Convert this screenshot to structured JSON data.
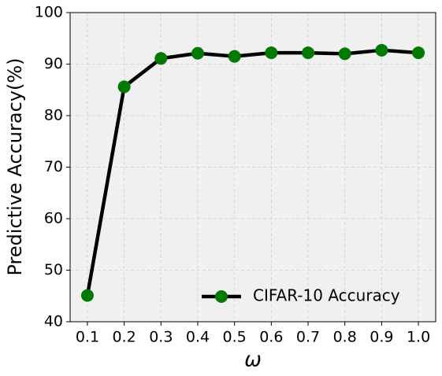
{
  "chart_data": {
    "type": "line",
    "x_label": "ω",
    "y_label": "Predictive Accuracy(%)",
    "x": [
      0.1,
      0.2,
      0.3,
      0.4,
      0.5,
      0.6,
      0.7,
      0.8,
      0.9,
      1.0
    ],
    "series": [
      {
        "name": "CIFAR-10 Accuracy",
        "color": "#000000",
        "marker_color": "#007a00",
        "values": [
          45.1,
          85.6,
          91.1,
          92.1,
          91.5,
          92.2,
          92.2,
          92.0,
          92.7,
          92.2
        ]
      }
    ],
    "xlim": [
      0.053,
      1.047
    ],
    "ylim": [
      40,
      100
    ],
    "xticks": [
      0.1,
      0.2,
      0.3,
      0.4,
      0.5,
      0.6,
      0.7,
      0.8,
      0.9,
      {
        "value": 1,
        "label": "1.0"
      }
    ],
    "yticks": [
      40,
      50,
      60,
      70,
      80,
      90,
      100
    ],
    "grid": true,
    "legend": "lower right"
  }
}
